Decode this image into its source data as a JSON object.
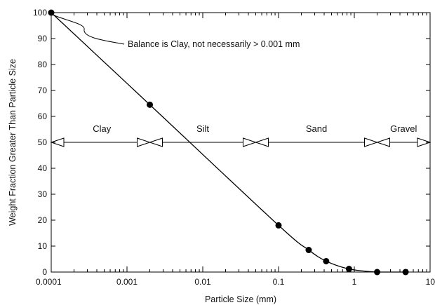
{
  "chart_data": {
    "type": "line",
    "title": "",
    "xlabel": "Particle Size (mm)",
    "ylabel": "Weight Fraction Greater Than Particle Size",
    "xscale": "log",
    "xlim": [
      0.0001,
      10
    ],
    "ylim": [
      0,
      100
    ],
    "xticks": [
      0.0001,
      0.001,
      0.01,
      0.1,
      1,
      10
    ],
    "xtick_labels": [
      "0.0001",
      "0.001",
      "0.01",
      "0.1",
      "1",
      "10"
    ],
    "yticks": [
      0,
      10,
      20,
      30,
      40,
      50,
      60,
      70,
      80,
      90,
      100
    ],
    "ytick_labels": [
      "0",
      "10",
      "20",
      "30",
      "40",
      "50",
      "60",
      "70",
      "80",
      "90",
      "100"
    ],
    "grid": false,
    "series": [
      {
        "x": [
          0.0001,
          0.002,
          0.1,
          0.25,
          0.425,
          0.85,
          2.0,
          4.75
        ],
        "y": [
          100,
          64.5,
          18,
          8.5,
          4.2,
          1.2,
          0,
          0
        ],
        "color": "#000000"
      }
    ],
    "annotations": [
      {
        "text": "Balance is Clay, not necessarily > 0.001 mm",
        "x": 0.0001,
        "y": 100
      }
    ],
    "size_classes": {
      "level": 50,
      "boundaries": [
        0.0001,
        0.002,
        0.05,
        2.0,
        10
      ],
      "labels": [
        "Clay",
        "Silt",
        "Sand",
        "Gravel"
      ]
    }
  }
}
